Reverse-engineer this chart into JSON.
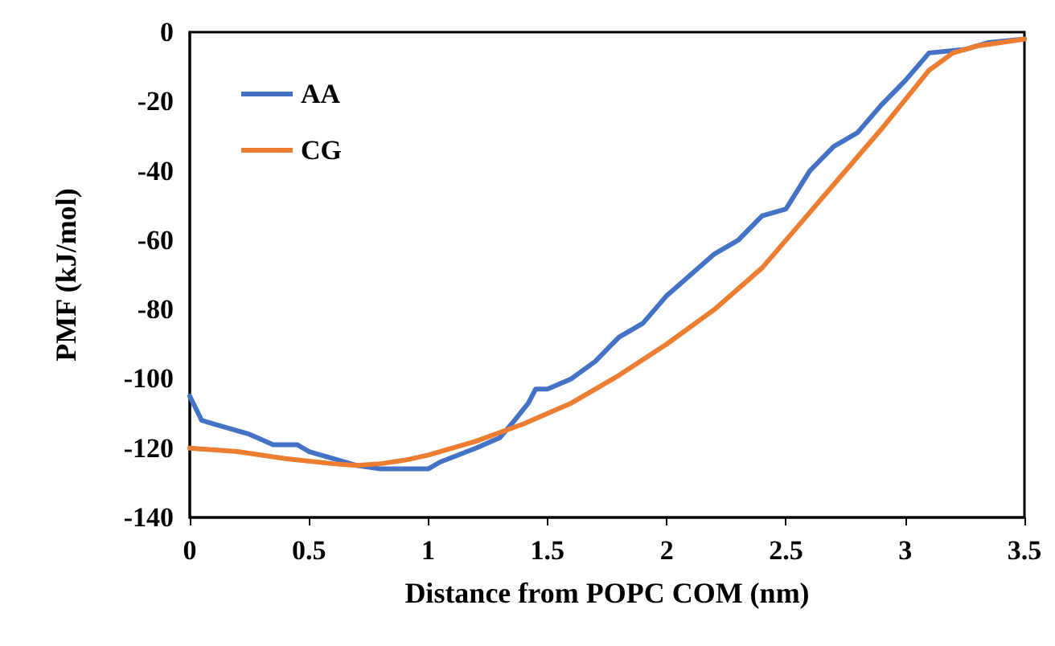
{
  "chart_data": {
    "type": "line",
    "xlabel": "Distance from POPC COM (nm)",
    "ylabel": "PMF (kJ/mol)",
    "xlim": [
      0,
      3.5
    ],
    "xticks": [
      0,
      0.5,
      1,
      1.5,
      2,
      2.5,
      3,
      3.5
    ],
    "ylim": [
      -140,
      0
    ],
    "yticks": [
      -140,
      -120,
      -100,
      -80,
      -60,
      -40,
      -20,
      0
    ],
    "grid": false,
    "legend": "top left",
    "marker": "none",
    "line_style": "solid",
    "series": [
      {
        "name": "AA",
        "color": "#4472c4",
        "x": [
          0,
          0.05,
          0.1,
          0.2,
          0.25,
          0.35,
          0.4,
          0.45,
          0.5,
          0.6,
          0.7,
          0.8,
          0.9,
          1.0,
          1.05,
          1.2,
          1.3,
          1.35,
          1.42,
          1.45,
          1.5,
          1.6,
          1.7,
          1.8,
          1.9,
          2.0,
          2.1,
          2.2,
          2.3,
          2.4,
          2.5,
          2.6,
          2.7,
          2.8,
          2.9,
          3.0,
          3.1,
          3.25,
          3.35,
          3.5
        ],
        "values": [
          -105,
          -112,
          -113,
          -115,
          -116,
          -119,
          -119,
          -119,
          -121,
          -123,
          -125,
          -126,
          -126,
          -126,
          -124,
          -120,
          -117,
          -113,
          -107,
          -103,
          -103,
          -100,
          -95,
          -88,
          -84,
          -76,
          -70,
          -64,
          -60,
          -53,
          -51,
          -40,
          -33,
          -29,
          -21,
          -14,
          -6,
          -5,
          -3,
          -2
        ]
      },
      {
        "name": "CG",
        "color": "#ed7d31",
        "x": [
          0,
          0.2,
          0.4,
          0.6,
          0.7,
          0.8,
          0.9,
          1.0,
          1.2,
          1.4,
          1.6,
          1.8,
          2.0,
          2.2,
          2.4,
          2.5,
          2.6,
          2.7,
          2.8,
          2.9,
          3.0,
          3.1,
          3.2,
          3.3,
          3.4,
          3.5
        ],
        "values": [
          -120,
          -121,
          -123,
          -124.5,
          -125,
          -124.5,
          -123.5,
          -122,
          -118,
          -113,
          -107,
          -99,
          -90,
          -80,
          -68,
          -60,
          -52,
          -44,
          -36,
          -28,
          -19.5,
          -11,
          -6,
          -4,
          -3,
          -2
        ]
      }
    ]
  }
}
